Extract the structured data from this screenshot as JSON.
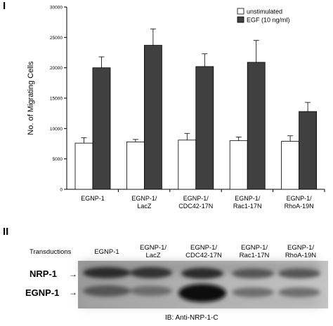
{
  "figure": {
    "panel_1_label": "I",
    "panel_2_label": "II"
  },
  "chart_data": {
    "type": "bar",
    "ylabel": "No. of Migrating Cells",
    "xlabel": "",
    "ylim": [
      0,
      30000
    ],
    "yticks": [
      "0",
      "5000",
      "10000",
      "15000",
      "20000",
      "25000",
      "30000"
    ],
    "categories": [
      "EGNP-1",
      "EGNP-1/\nLacZ",
      "EGNP-1/\nCDC42-17N",
      "EGNP-1/\nRac1-17N",
      "EGNP-1/\nRhoA-19N"
    ],
    "legend_position": "top-right",
    "grid": false,
    "series": [
      {
        "name": "unstimulated",
        "color": "#ffffff",
        "values": [
          7600,
          7800,
          8100,
          8000,
          7900
        ],
        "errors": [
          900,
          400,
          1100,
          600,
          900
        ]
      },
      {
        "name": "EGF (10 ng/ml)",
        "color": "#404040",
        "values": [
          20000,
          23700,
          20200,
          20900,
          12800
        ],
        "errors": [
          1800,
          2700,
          2100,
          3600,
          1500
        ]
      }
    ]
  },
  "blot": {
    "transductions_label": "Transductions",
    "lanes": [
      "EGNP-1",
      "EGNP-1/\nLacZ",
      "EGNP-1/\nCDC42-17N",
      "EGNP-1/\nRac1-17N",
      "EGNP-1/\nRhoA-19N"
    ],
    "band_1_label": "NRP-1",
    "band_2_label": "EGNP-1",
    "arrow_glyph": "→",
    "ib_label": "IB: Anti-NRP-1-C"
  }
}
